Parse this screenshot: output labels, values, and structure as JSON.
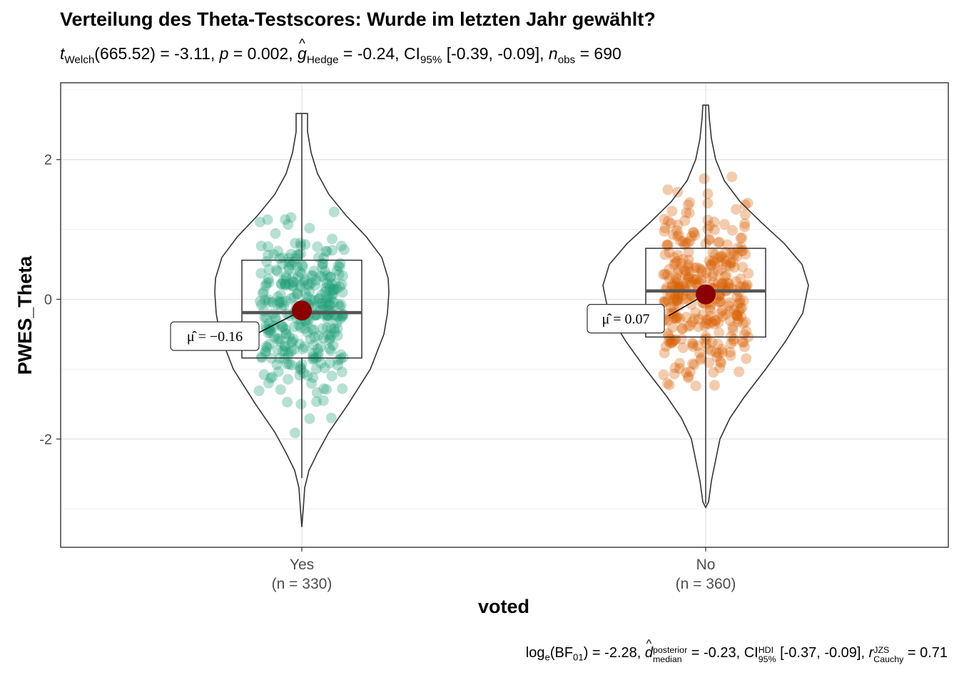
{
  "chart_data": {
    "type": "violin-box-scatter",
    "title": "Verteilung des Theta-Testscores: Wurde im letzten Jahr gewählt?",
    "subtitle": {
      "t_label": "t",
      "t_sub": "Welch",
      "df": "(665.52) = -3.11, ",
      "p_label": "p",
      "p_value": " = 0.002, ",
      "g_label": "g",
      "g_sub": "Hedge",
      "g_value": " = -0.24, CI",
      "ci_sub": "95%",
      "ci_value": " [-0.39, -0.09], ",
      "n_label": "n",
      "n_sub": "obs",
      "n_value": " = 690"
    },
    "caption": {
      "log_label": "log",
      "log_sub": "e",
      "bf_open": "(BF",
      "bf_sub": "01",
      "bf_value": ") = -2.28, ",
      "d_label": "d",
      "d_sup": "posterior",
      "d_sub": "median",
      "d_value": " = -0.23, CI",
      "ci_sup": "HDI",
      "ci_sub": "95%",
      "ci_value": " [-0.37, -0.09], ",
      "r_label": "r",
      "r_sup": "JZS",
      "r_sub": "Cauchy",
      "r_value": " = 0.71"
    },
    "xlabel": "voted",
    "ylabel": "PWES_Theta",
    "ylim": [
      -3.55,
      3.1
    ],
    "yticks": [
      -2,
      0,
      2
    ],
    "grid": true,
    "categories": [
      {
        "name": "Yes",
        "n_label": "(n = 330)",
        "color": "#1B9E77",
        "box": {
          "q1": -0.84,
          "median": -0.19,
          "q3": 0.56,
          "whisker_low": -2.56,
          "whisker_high": 2.66
        },
        "mean": -0.16,
        "mean_label": "−0.16",
        "range": [
          -3.26,
          2.66
        ]
      },
      {
        "name": "No",
        "n_label": "(n = 360)",
        "color": "#D95F02",
        "box": {
          "q1": -0.54,
          "median": 0.12,
          "q3": 0.73,
          "whisker_low": -2.93,
          "whisker_high": 2.78
        },
        "mean": 0.07,
        "mean_label": "0.07",
        "range": [
          -2.98,
          2.78
        ]
      }
    ],
    "mean_color": "#8B0000"
  }
}
